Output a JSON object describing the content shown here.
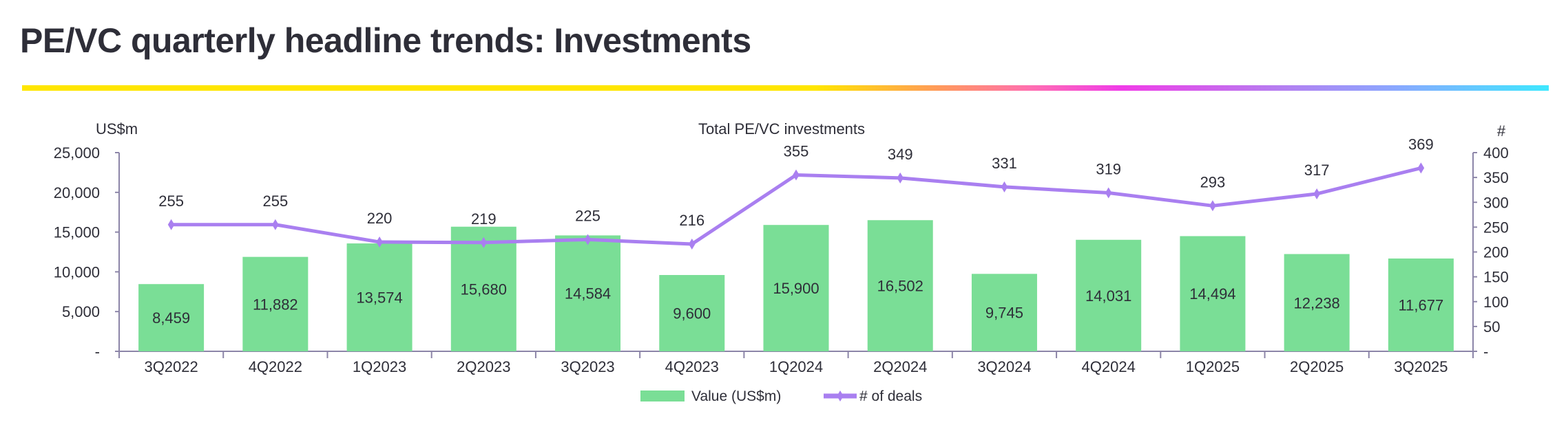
{
  "page_title": "PE/VC quarterly headline trends: Investments",
  "colors": {
    "bar": "#7ade96",
    "line": "#a97ff0",
    "axis": "#8c85a8",
    "text": "#2e2e38"
  },
  "chart_data": {
    "type": "bar+line",
    "title": "Total PE/VC investments",
    "ylabel_left": "US$m",
    "ylabel_right": "#",
    "categories": [
      "3Q2022",
      "4Q2022",
      "1Q2023",
      "2Q2023",
      "3Q2023",
      "4Q2023",
      "1Q2024",
      "2Q2024",
      "3Q2024",
      "4Q2024",
      "1Q2025",
      "2Q2025",
      "3Q2025"
    ],
    "series": [
      {
        "name": "Value (US$m)",
        "type": "bar",
        "axis": "left",
        "values": [
          8459,
          11882,
          13574,
          15680,
          14584,
          9600,
          15900,
          16502,
          9745,
          14031,
          14494,
          12238,
          11677
        ],
        "labels": [
          "8,459",
          "11,882",
          "13,574",
          "15,680",
          "14,584",
          "9,600",
          "15,900",
          "16,502",
          "9,745",
          "14,031",
          "14,494",
          "12,238",
          "11,677"
        ]
      },
      {
        "name": "# of deals",
        "type": "line",
        "axis": "right",
        "values": [
          255,
          255,
          220,
          219,
          225,
          216,
          355,
          349,
          331,
          319,
          293,
          317,
          369
        ],
        "labels": [
          "255",
          "255",
          "220",
          "219",
          "225",
          "216",
          "355",
          "349",
          "331",
          "319",
          "293",
          "317",
          "369"
        ]
      }
    ],
    "ylim_left": [
      0,
      25000
    ],
    "ylim_right": [
      0,
      400
    ],
    "left_ticks": [
      "-",
      "5,000",
      "10,000",
      "15,000",
      "20,000",
      "25,000"
    ],
    "right_ticks": [
      "-",
      "50",
      "100",
      "150",
      "200",
      "250",
      "300",
      "350",
      "400"
    ],
    "grid": false,
    "legend": "bottom-center"
  }
}
